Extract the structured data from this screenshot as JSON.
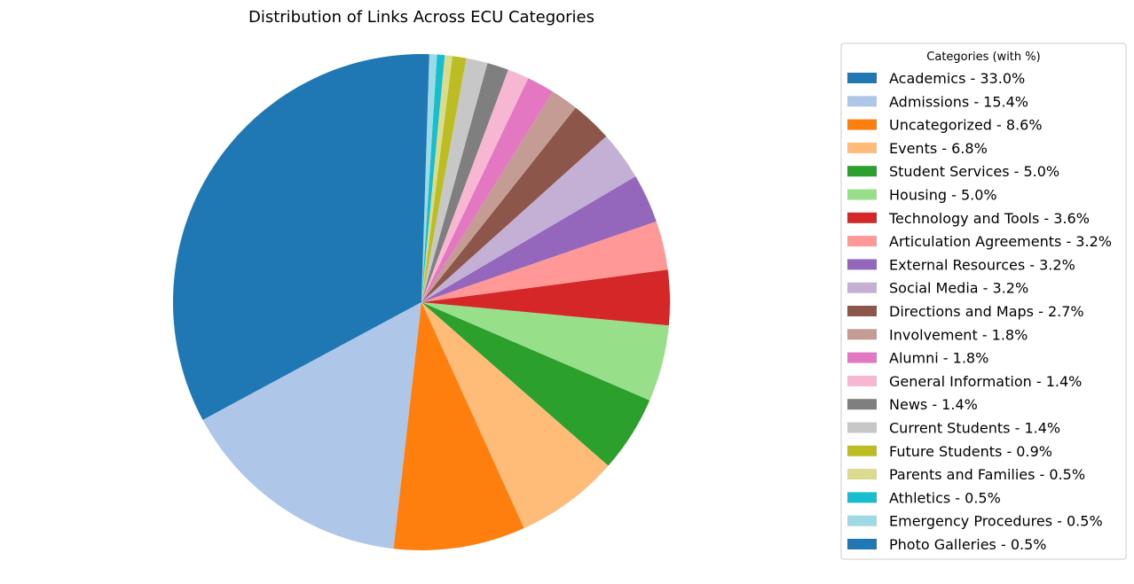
{
  "chart_data": {
    "type": "pie",
    "title": "Distribution of Links Across ECU Categories",
    "legend_title": "Categories (with %)",
    "legend_position": "right",
    "start_angle_deg": 90,
    "direction": "clockwise",
    "slices": [
      {
        "label": "Academics",
        "value": 33.0,
        "color": "#1f77b4",
        "legend": "Academics - 33.0%"
      },
      {
        "label": "Admissions",
        "value": 15.4,
        "color": "#aec7e8",
        "legend": "Admissions - 15.4%"
      },
      {
        "label": "Uncategorized",
        "value": 8.6,
        "color": "#ff7f0e",
        "legend": "Uncategorized - 8.6%"
      },
      {
        "label": "Events",
        "value": 6.8,
        "color": "#ffbb78",
        "legend": "Events - 6.8%"
      },
      {
        "label": "Student Services",
        "value": 5.0,
        "color": "#2ca02c",
        "legend": "Student Services - 5.0%"
      },
      {
        "label": "Housing",
        "value": 5.0,
        "color": "#98df8a",
        "legend": "Housing - 5.0%"
      },
      {
        "label": "Technology and Tools",
        "value": 3.6,
        "color": "#d62728",
        "legend": "Technology and Tools - 3.6%"
      },
      {
        "label": "Articulation Agreements",
        "value": 3.2,
        "color": "#ff9896",
        "legend": "Articulation Agreements - 3.2%"
      },
      {
        "label": "External Resources",
        "value": 3.2,
        "color": "#9467bd",
        "legend": "External Resources - 3.2%"
      },
      {
        "label": "Social Media",
        "value": 3.2,
        "color": "#c5b0d5",
        "legend": "Social Media - 3.2%"
      },
      {
        "label": "Directions and Maps",
        "value": 2.7,
        "color": "#8c564b",
        "legend": "Directions and Maps - 2.7%"
      },
      {
        "label": "Involvement",
        "value": 1.8,
        "color": "#c49c94",
        "legend": "Involvement - 1.8%"
      },
      {
        "label": "Alumni",
        "value": 1.8,
        "color": "#e377c2",
        "legend": "Alumni - 1.8%"
      },
      {
        "label": "General Information",
        "value": 1.4,
        "color": "#f7b6d2",
        "legend": "General Information - 1.4%"
      },
      {
        "label": "News",
        "value": 1.4,
        "color": "#7f7f7f",
        "legend": "News - 1.4%"
      },
      {
        "label": "Current Students",
        "value": 1.4,
        "color": "#c7c7c7",
        "legend": "Current Students - 1.4%"
      },
      {
        "label": "Future Students",
        "value": 0.9,
        "color": "#bcbd22",
        "legend": "Future Students - 0.9%"
      },
      {
        "label": "Parents and Families",
        "value": 0.5,
        "color": "#dbdb8d",
        "legend": "Parents and Families - 0.5%"
      },
      {
        "label": "Athletics",
        "value": 0.5,
        "color": "#17becf",
        "legend": "Athletics - 0.5%"
      },
      {
        "label": "Emergency Procedures",
        "value": 0.5,
        "color": "#9edae5",
        "legend": "Emergency Procedures - 0.5%"
      },
      {
        "label": "Photo Galleries",
        "value": 0.5,
        "color": "#1f77b4",
        "legend": "Photo Galleries - 0.5%"
      }
    ]
  }
}
